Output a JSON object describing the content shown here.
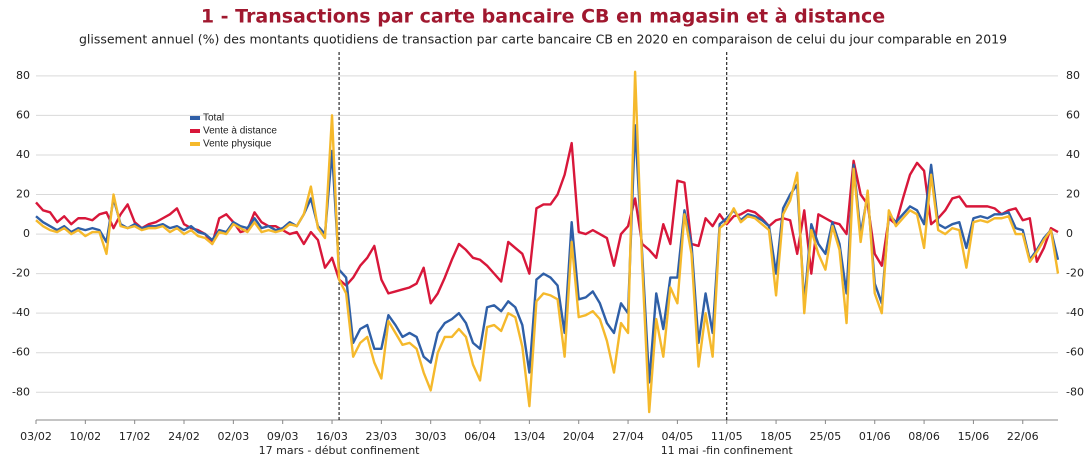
{
  "chart_data": {
    "type": "line",
    "title": "1 - Transactions par carte bancaire CB en magasin et à distance",
    "subtitle": "glissement annuel (%) des montants quotidiens de transaction par carte bancaire CB en 2020 en comparaison de celui du jour comparable en 2019",
    "categories": [
      "03/02",
      null,
      null,
      null,
      null,
      null,
      null,
      "10/02",
      null,
      null,
      null,
      null,
      null,
      null,
      "17/02",
      null,
      null,
      null,
      null,
      null,
      null,
      "24/02",
      null,
      null,
      null,
      null,
      null,
      null,
      "02/03",
      null,
      null,
      null,
      null,
      null,
      null,
      "09/03",
      null,
      null,
      null,
      null,
      null,
      null,
      "16/03",
      null,
      null,
      null,
      null,
      null,
      null,
      "23/03",
      null,
      null,
      null,
      null,
      null,
      null,
      "30/03",
      null,
      null,
      null,
      null,
      null,
      null,
      "06/04",
      null,
      null,
      null,
      null,
      null,
      null,
      "13/04",
      null,
      null,
      null,
      null,
      null,
      null,
      "20/04",
      null,
      null,
      null,
      null,
      null,
      null,
      "27/04",
      null,
      null,
      null,
      null,
      null,
      null,
      "04/05",
      null,
      null,
      null,
      null,
      null,
      null,
      "11/05",
      null,
      null,
      null,
      null,
      null,
      null,
      "18/05",
      null,
      null,
      null,
      null,
      null,
      null,
      "25/05",
      null,
      null,
      null,
      null,
      null,
      null,
      "01/06",
      null,
      null,
      null,
      null,
      null,
      null,
      "08/06",
      null,
      null,
      null,
      null,
      null,
      null,
      "15/06",
      null,
      null,
      null,
      null,
      null,
      null,
      "22/06",
      null,
      null,
      null,
      null,
      null
    ],
    "series": [
      {
        "name": "Total",
        "color": "#2f5fa7",
        "values": [
          9,
          6,
          4,
          2,
          4,
          1,
          3,
          2,
          3,
          2,
          -4,
          18,
          5,
          3,
          5,
          3,
          4,
          4,
          5,
          3,
          4,
          2,
          4,
          1,
          0,
          -3,
          2,
          1,
          6,
          4,
          3,
          8,
          3,
          4,
          2,
          3,
          6,
          4,
          10,
          18,
          4,
          0,
          42,
          -18,
          -22,
          -55,
          -48,
          -46,
          -58,
          -58,
          -41,
          -46,
          -52,
          -50,
          -52,
          -62,
          -65,
          -50,
          -45,
          -43,
          -40,
          -45,
          -55,
          -58,
          -37,
          -36,
          -39,
          -34,
          -37,
          -46,
          -70,
          -23,
          -20,
          -22,
          -26,
          -50,
          6,
          -33,
          -32,
          -29,
          -35,
          -45,
          -50,
          -35,
          -40,
          55,
          -10,
          -75,
          -30,
          -48,
          -22,
          -22,
          12,
          -5,
          -55,
          -30,
          -50,
          5,
          8,
          12,
          7,
          10,
          9,
          7,
          4,
          -20,
          13,
          20,
          25,
          -35,
          5,
          -5,
          -10,
          6,
          -5,
          -30,
          35,
          0,
          20,
          -25,
          -35,
          10,
          6,
          10,
          14,
          12,
          5,
          35,
          5,
          3,
          5,
          6,
          -7,
          8,
          9,
          8,
          10,
          10,
          11,
          3,
          2,
          -13,
          -8,
          -2,
          2,
          -13
        ]
      },
      {
        "name": "Vente à distance",
        "color": "#d8173a",
        "values": [
          16,
          12,
          11,
          6,
          9,
          5,
          8,
          8,
          7,
          10,
          11,
          3,
          10,
          15,
          6,
          3,
          5,
          6,
          8,
          10,
          13,
          5,
          3,
          2,
          0,
          -5,
          8,
          10,
          6,
          1,
          2,
          11,
          6,
          4,
          4,
          2,
          0,
          1,
          -5,
          1,
          -3,
          -17,
          -12,
          -23,
          -26,
          -22,
          -16,
          -12,
          -6,
          -23,
          -30,
          -29,
          -28,
          -27,
          -25,
          -17,
          -35,
          -30,
          -22,
          -13,
          -5,
          -8,
          -12,
          -13,
          -16,
          -20,
          -24,
          -4,
          -7,
          -10,
          -20,
          13,
          15,
          15,
          20,
          30,
          46,
          1,
          0,
          2,
          0,
          -2,
          -16,
          0,
          4,
          18,
          -5,
          -8,
          -12,
          5,
          -5,
          27,
          26,
          -5,
          -6,
          8,
          4,
          10,
          5,
          9,
          10,
          12,
          11,
          8,
          4,
          7,
          8,
          7,
          -10,
          12,
          -20,
          10,
          8,
          6,
          5,
          0,
          37,
          20,
          15,
          -10,
          -16,
          8,
          5,
          18,
          30,
          36,
          32,
          5,
          8,
          12,
          18,
          19,
          14,
          14,
          14,
          14,
          13,
          10,
          12,
          13,
          7,
          8,
          -14,
          -7,
          3,
          1
        ]
      },
      {
        "name": "Vente physique",
        "color": "#f5b92c",
        "values": [
          7,
          4,
          2,
          1,
          3,
          0,
          2,
          -1,
          1,
          1,
          -10,
          20,
          4,
          3,
          4,
          2,
          3,
          3,
          4,
          1,
          3,
          0,
          2,
          -1,
          -2,
          -5,
          1,
          0,
          5,
          3,
          1,
          6,
          1,
          2,
          1,
          2,
          5,
          4,
          10,
          24,
          3,
          -2,
          60,
          -23,
          -30,
          -62,
          -55,
          -52,
          -65,
          -73,
          -44,
          -50,
          -56,
          -55,
          -58,
          -70,
          -79,
          -60,
          -52,
          -52,
          -48,
          -52,
          -66,
          -74,
          -47,
          -46,
          -49,
          -40,
          -42,
          -57,
          -87,
          -34,
          -30,
          -31,
          -33,
          -62,
          -4,
          -42,
          -41,
          -39,
          -43,
          -54,
          -70,
          -45,
          -50,
          82,
          -15,
          -90,
          -43,
          -62,
          -27,
          -35,
          10,
          -10,
          -67,
          -40,
          -62,
          3,
          6,
          13,
          6,
          9,
          8,
          5,
          2,
          -31,
          10,
          17,
          31,
          -40,
          2,
          -10,
          -18,
          4,
          -8,
          -45,
          33,
          -4,
          22,
          -30,
          -40,
          12,
          4,
          8,
          12,
          10,
          -7,
          30,
          2,
          0,
          3,
          2,
          -17,
          6,
          7,
          6,
          8,
          8,
          9,
          0,
          0,
          -14,
          -9,
          -3,
          2,
          -20
        ]
      }
    ],
    "ylim": [
      -94,
      88
    ],
    "yticks": [
      -80,
      -60,
      -40,
      -20,
      0,
      20,
      40,
      60,
      80
    ],
    "grid": true,
    "legend": "upper left",
    "annotations": [
      {
        "text": "17 mars - début confinement",
        "x_index": 43
      },
      {
        "text": "11 mai -fin confinement",
        "x_index": 98
      }
    ]
  }
}
